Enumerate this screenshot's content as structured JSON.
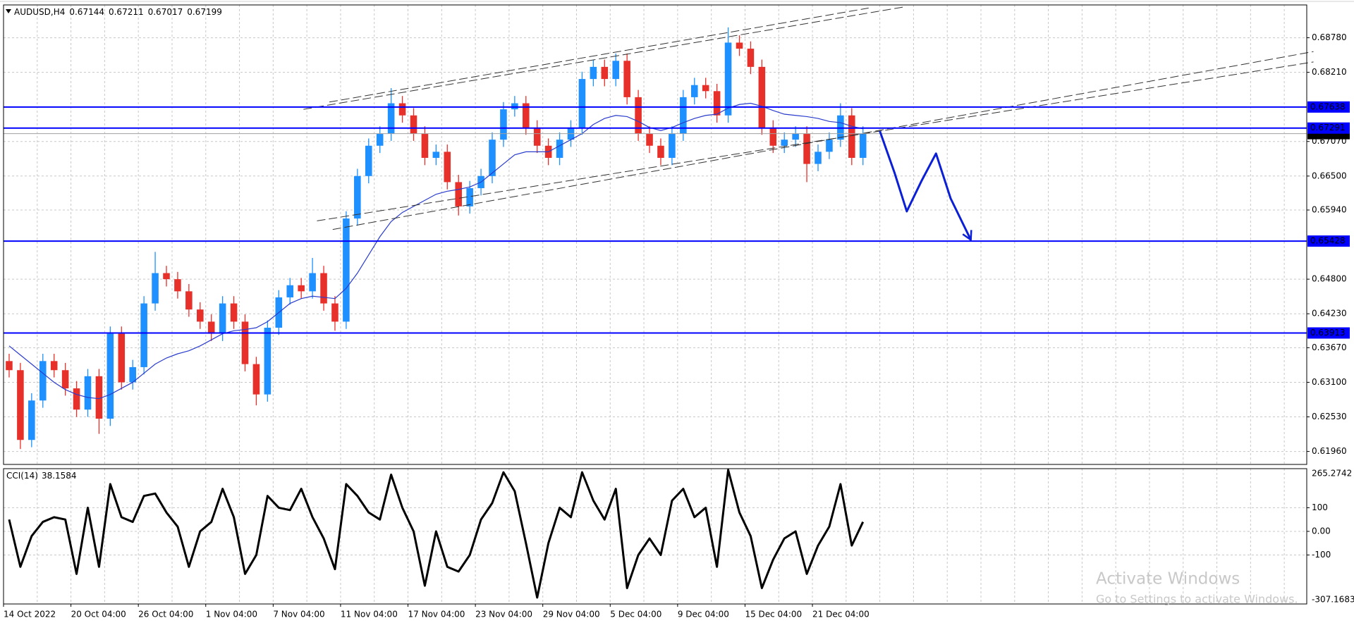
{
  "chart_data": [
    {
      "type": "candlestick",
      "title": "AUDUSD,H4",
      "header_values": [
        0.67144,
        0.67211,
        0.67017,
        0.67199
      ],
      "categories": [
        "14 Oct 2022",
        null,
        null,
        null,
        null,
        null,
        "20 Oct 04:00",
        null,
        null,
        null,
        null,
        null,
        "26 Oct 04:00",
        null,
        null,
        null,
        null,
        null,
        "1 Nov 04:00",
        null,
        null,
        null,
        null,
        null,
        "7 Nov 04:00",
        null,
        null,
        null,
        null,
        null,
        "11 Nov 04:00",
        null,
        null,
        null,
        null,
        null,
        "17 Nov 04:00",
        null,
        null,
        null,
        null,
        null,
        "23 Nov 04:00",
        null,
        null,
        null,
        null,
        null,
        "29 Nov 04:00",
        null,
        null,
        null,
        null,
        null,
        "5 Dec 04:00",
        null,
        null,
        null,
        null,
        null,
        "9 Dec 04:00",
        null,
        null,
        null,
        null,
        null,
        "15 Dec 04:00",
        null,
        null,
        null,
        null,
        null,
        "21 Dec 04:00",
        null,
        null,
        null,
        null
      ],
      "open": [
        0.6345,
        0.633,
        0.6215,
        0.628,
        0.6345,
        0.633,
        0.63,
        0.6265,
        0.632,
        0.625,
        0.639,
        0.631,
        0.6335,
        0.644,
        0.649,
        0.648,
        0.646,
        0.643,
        0.641,
        0.639,
        0.644,
        0.641,
        0.634,
        0.629,
        0.64,
        0.645,
        0.647,
        0.646,
        0.649,
        0.644,
        0.641,
        0.658,
        0.665,
        0.67,
        0.672,
        0.677,
        0.675,
        0.672,
        0.668,
        0.669,
        0.664,
        0.66,
        0.663,
        0.665,
        0.671,
        0.676,
        0.677,
        0.673,
        0.67,
        0.668,
        0.671,
        0.673,
        0.681,
        0.683,
        0.681,
        0.684,
        0.678,
        0.672,
        0.67,
        0.668,
        0.672,
        0.678,
        0.68,
        0.679,
        0.675,
        0.687,
        0.686,
        0.683,
        0.673,
        0.67,
        0.671,
        0.672,
        0.667,
        0.669,
        0.671,
        0.675,
        0.668
      ],
      "high": [
        0.6357,
        0.6342,
        0.6292,
        0.6357,
        0.6357,
        0.6342,
        0.6312,
        0.6332,
        0.6332,
        0.6402,
        0.6402,
        0.6347,
        0.6452,
        0.6525,
        0.6502,
        0.6492,
        0.6472,
        0.6442,
        0.6422,
        0.6452,
        0.6452,
        0.6422,
        0.6352,
        0.6412,
        0.6462,
        0.6482,
        0.6482,
        0.6515,
        0.6502,
        0.6452,
        0.6592,
        0.6662,
        0.6712,
        0.6732,
        0.6795,
        0.6782,
        0.6762,
        0.6732,
        0.6702,
        0.6702,
        0.6652,
        0.6642,
        0.6662,
        0.6722,
        0.6772,
        0.6782,
        0.6782,
        0.6742,
        0.6712,
        0.6722,
        0.6742,
        0.6822,
        0.6842,
        0.6842,
        0.6852,
        0.6852,
        0.6792,
        0.6732,
        0.6712,
        0.6732,
        0.6792,
        0.6812,
        0.6812,
        0.6802,
        0.6895,
        0.6882,
        0.6872,
        0.6842,
        0.6742,
        0.6722,
        0.6732,
        0.6732,
        0.6702,
        0.6722,
        0.677,
        0.6762,
        0.6732
      ],
      "low": [
        0.6318,
        0.62,
        0.6203,
        0.6268,
        0.6318,
        0.6288,
        0.6253,
        0.6253,
        0.6225,
        0.6238,
        0.6298,
        0.6298,
        0.6323,
        0.6428,
        0.6468,
        0.6448,
        0.6418,
        0.6398,
        0.6378,
        0.6378,
        0.6398,
        0.6328,
        0.6272,
        0.6278,
        0.6388,
        0.6438,
        0.6448,
        0.6448,
        0.6428,
        0.6395,
        0.6398,
        0.6568,
        0.6638,
        0.6688,
        0.6708,
        0.6738,
        0.6708,
        0.6668,
        0.6668,
        0.6628,
        0.6585,
        0.6588,
        0.6618,
        0.6638,
        0.6698,
        0.6748,
        0.6718,
        0.6688,
        0.6668,
        0.6668,
        0.6698,
        0.6718,
        0.6798,
        0.6798,
        0.6798,
        0.6768,
        0.6708,
        0.6688,
        0.6668,
        0.6668,
        0.6708,
        0.6768,
        0.6778,
        0.6738,
        0.6738,
        0.6848,
        0.6818,
        0.6718,
        0.6688,
        0.6688,
        0.6698,
        0.664,
        0.6658,
        0.6678,
        0.6698,
        0.6668,
        0.6668
      ],
      "close": [
        0.633,
        0.6215,
        0.628,
        0.6345,
        0.633,
        0.63,
        0.6265,
        0.632,
        0.625,
        0.639,
        0.631,
        0.6335,
        0.644,
        0.649,
        0.648,
        0.646,
        0.643,
        0.641,
        0.639,
        0.644,
        0.641,
        0.634,
        0.629,
        0.64,
        0.645,
        0.647,
        0.646,
        0.649,
        0.644,
        0.641,
        0.658,
        0.665,
        0.67,
        0.672,
        0.677,
        0.675,
        0.672,
        0.668,
        0.669,
        0.664,
        0.66,
        0.663,
        0.665,
        0.671,
        0.676,
        0.677,
        0.673,
        0.67,
        0.668,
        0.671,
        0.673,
        0.681,
        0.683,
        0.681,
        0.684,
        0.678,
        0.672,
        0.67,
        0.668,
        0.672,
        0.678,
        0.68,
        0.679,
        0.675,
        0.687,
        0.686,
        0.683,
        0.673,
        0.67,
        0.671,
        0.672,
        0.667,
        0.669,
        0.671,
        0.675,
        0.668,
        0.672
      ],
      "up_color": "#1e90ff",
      "down_color": "#e8302a",
      "ma": {
        "color": "#2a3ccc",
        "values": [
          0.637,
          0.6355,
          0.634,
          0.6325,
          0.631,
          0.6298,
          0.629,
          0.6285,
          0.6283,
          0.629,
          0.63,
          0.631,
          0.6325,
          0.634,
          0.635,
          0.6357,
          0.6362,
          0.637,
          0.638,
          0.639,
          0.6395,
          0.6397,
          0.64,
          0.641,
          0.6425,
          0.644,
          0.6448,
          0.6452,
          0.645,
          0.6448,
          0.6465,
          0.649,
          0.652,
          0.655,
          0.6575,
          0.659,
          0.66,
          0.661,
          0.662,
          0.6625,
          0.6628,
          0.6632,
          0.664,
          0.6655,
          0.667,
          0.6685,
          0.669,
          0.669,
          0.669,
          0.67,
          0.671,
          0.672,
          0.6735,
          0.6745,
          0.675,
          0.6748,
          0.674,
          0.673,
          0.6725,
          0.673,
          0.6738,
          0.6745,
          0.675,
          0.6752,
          0.6762,
          0.6768,
          0.677,
          0.6765,
          0.6758,
          0.6752,
          0.675,
          0.6748,
          0.6745,
          0.674,
          0.6738,
          0.6732,
          0.6728
        ]
      },
      "xlim": [
        -0.5,
        115.5
      ],
      "ylim": [
        0.61746,
        0.69321
      ],
      "yticks": [
        {
          "value": 0.6878,
          "label": "0.68780"
        },
        {
          "value": 0.6821,
          "label": "0.68210"
        },
        {
          "value": 0.6707,
          "label": "0.67070"
        },
        {
          "value": 0.665,
          "label": "0.66500"
        },
        {
          "value": 0.6594,
          "label": "0.65940"
        },
        {
          "value": 0.648,
          "label": "0.64800"
        },
        {
          "value": 0.6423,
          "label": "0.64230"
        },
        {
          "value": 0.6367,
          "label": "0.63670"
        },
        {
          "value": 0.631,
          "label": "0.63100"
        },
        {
          "value": 0.6253,
          "label": "0.62530"
        },
        {
          "value": 0.6196,
          "label": "0.61960"
        }
      ],
      "grid": true,
      "hline_color": "#0000ff",
      "hlines": [
        {
          "value": 0.67638
        },
        {
          "value": 0.67291
        },
        {
          "value": 0.65428
        },
        {
          "value": 0.63913
        }
      ],
      "current_price": 0.67199,
      "trendline_color": "#333333",
      "trendlines": [
        {
          "x": [
            26.2,
            79.7
          ],
          "y": [
            0.676,
            0.6929
          ]
        },
        {
          "x": [
            28.5,
            76.5
          ],
          "y": [
            0.6772,
            0.6927
          ]
        },
        {
          "x": [
            28.8,
            116.1
          ],
          "y": [
            0.65619,
            0.68552
          ]
        },
        {
          "x": [
            27.4,
            116.1
          ],
          "y": [
            0.65761,
            0.68381
          ]
        }
      ],
      "forecast": {
        "color": "#0a1fd6",
        "x": [
          77.5,
          78.8,
          79.9,
          81.2,
          82.5,
          83.8,
          85.6
        ],
        "y": [
          0.67242,
          0.66559,
          0.65918,
          0.66416,
          0.66872,
          0.66132,
          0.65448
        ]
      }
    },
    {
      "type": "line",
      "title": "CCI(14)",
      "current_value": 38.1584,
      "color": "#000000",
      "values": [
        50,
        -150,
        -20,
        40,
        60,
        50,
        -180,
        100,
        -150,
        200,
        60,
        40,
        150,
        160,
        80,
        20,
        -150,
        0,
        40,
        180,
        60,
        -180,
        -100,
        150,
        100,
        90,
        180,
        60,
        -30,
        -160,
        200,
        150,
        80,
        50,
        240,
        100,
        0,
        -230,
        0,
        -150,
        -170,
        -100,
        50,
        120,
        250,
        170,
        -50,
        -280,
        -50,
        100,
        60,
        250,
        130,
        50,
        180,
        -240,
        -100,
        -30,
        -100,
        130,
        180,
        60,
        100,
        -150,
        260,
        80,
        -20,
        -240,
        -120,
        -30,
        0,
        -180,
        -60,
        20,
        200,
        -60,
        40
      ],
      "ylim": [
        -307.1683,
        265.2742
      ],
      "yticks": [
        100,
        {
          "value": 0,
          "label": "0.00"
        },
        -100
      ],
      "grid": true
    }
  ],
  "watermark": {
    "title": "Activate Windows",
    "subtitle": "Go to Settings to activate Windows."
  }
}
